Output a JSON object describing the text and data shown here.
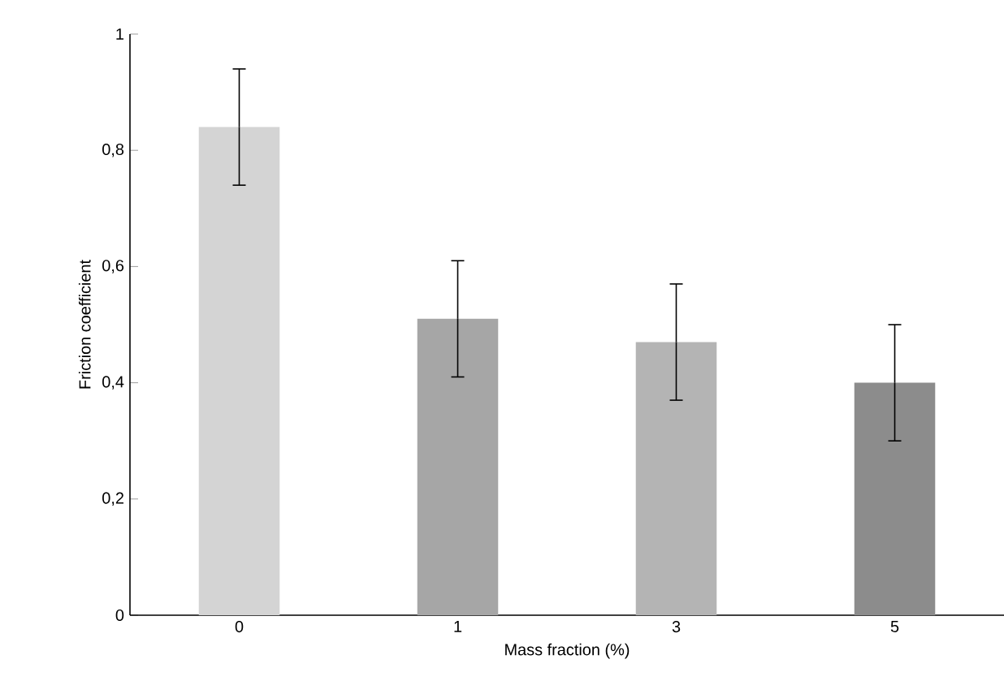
{
  "chart_data": {
    "type": "bar",
    "xlabel": "Mass fraction (%)",
    "ylabel": "Friction coefficient",
    "categories": [
      "0",
      "1",
      "3",
      "5"
    ],
    "values": [
      0.84,
      0.51,
      0.47,
      0.4
    ],
    "errors": [
      0.1,
      0.1,
      0.1,
      0.1
    ],
    "colors": [
      "#d4d4d4",
      "#a6a6a6",
      "#b4b4b4",
      "#8c8c8c"
    ],
    "ylim": [
      0,
      1
    ],
    "yticks": [
      0,
      {
        "value": 0.2,
        "label": "0,2"
      },
      {
        "value": 0.4,
        "label": "0,4"
      },
      {
        "value": 0.6,
        "label": "0,6"
      },
      {
        "value": 0.8,
        "label": "0,8"
      },
      1
    ],
    "grid": false
  }
}
